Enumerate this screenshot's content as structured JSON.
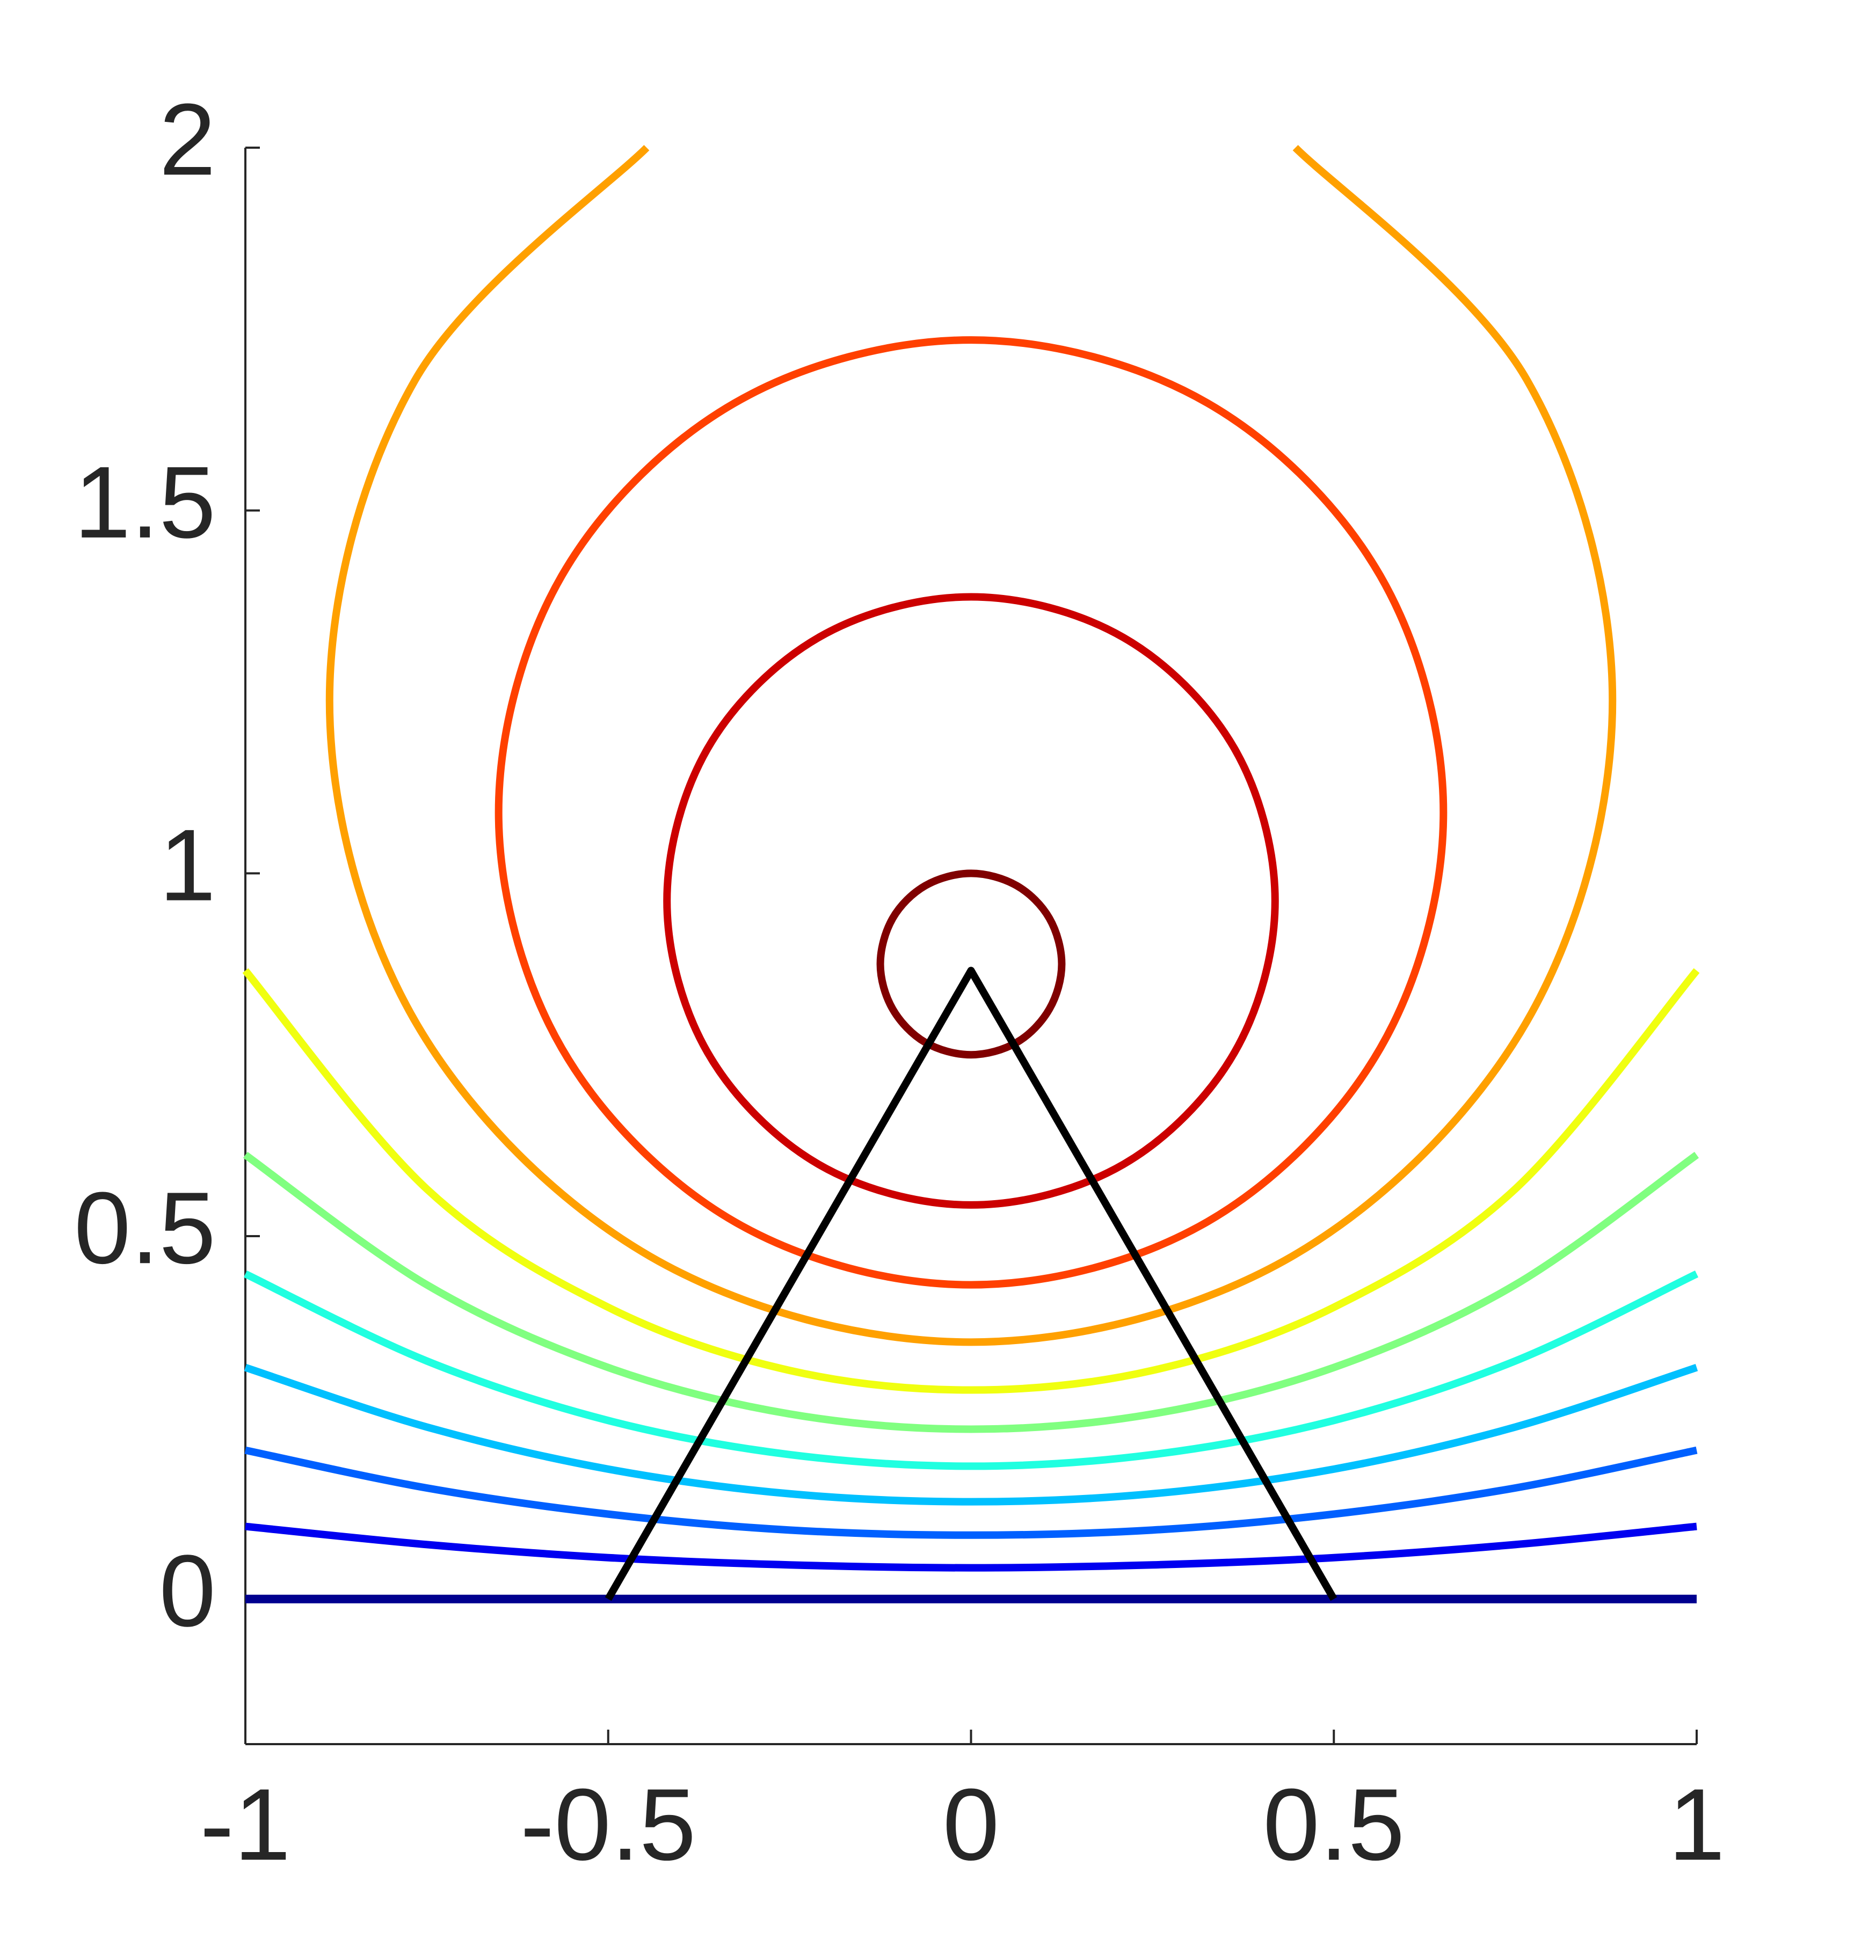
{
  "chart_data": {
    "type": "line",
    "xlim": [
      -1,
      1
    ],
    "ylim": [
      -0.2,
      2
    ],
    "xticks": [
      -1,
      -0.5,
      0,
      0.5,
      1
    ],
    "yticks": [
      0,
      0.5,
      1,
      1.5,
      2
    ],
    "series": [
      {
        "color": "#00008f",
        "x": [
          -1,
          1
        ],
        "values": [
          0,
          0
        ]
      },
      {
        "color": "#0000f0",
        "x": [
          -1,
          -0.75,
          -0.5,
          -0.25,
          0,
          0.25,
          0.5,
          0.75,
          1
        ],
        "values": [
          0.1,
          0.075,
          0.057,
          0.047,
          0.043,
          0.047,
          0.057,
          0.075,
          0.1
        ]
      },
      {
        "color": "#0060ff",
        "x": [
          -1,
          -0.75,
          -0.5,
          -0.25,
          0,
          0.25,
          0.5,
          0.75,
          1
        ],
        "values": [
          0.205,
          0.153,
          0.117,
          0.095,
          0.088,
          0.095,
          0.117,
          0.153,
          0.205
        ]
      },
      {
        "color": "#00c0ff",
        "x": [
          -1,
          -0.75,
          -0.5,
          -0.25,
          0,
          0.25,
          0.5,
          0.75,
          1
        ],
        "values": [
          0.319,
          0.237,
          0.179,
          0.145,
          0.134,
          0.145,
          0.179,
          0.237,
          0.319
        ]
      },
      {
        "color": "#20ffe0",
        "x": [
          -1,
          -0.75,
          -0.5,
          -0.25,
          0,
          0.25,
          0.5,
          0.75,
          1
        ],
        "values": [
          0.448,
          0.328,
          0.246,
          0.199,
          0.183,
          0.199,
          0.246,
          0.328,
          0.448
        ]
      },
      {
        "color": "#80ff80",
        "x": [
          -1,
          -0.75,
          -0.5,
          -0.25,
          0,
          0.25,
          0.5,
          0.75,
          1
        ],
        "values": [
          0.612,
          0.433,
          0.319,
          0.255,
          0.234,
          0.255,
          0.319,
          0.433,
          0.612
        ]
      },
      {
        "color": "#f0ff10",
        "x": [
          -1,
          -0.75,
          -0.5,
          -0.25,
          0,
          0.25,
          0.5,
          0.75,
          1
        ],
        "values": [
          0.866,
          0.565,
          0.402,
          0.315,
          0.288,
          0.315,
          0.402,
          0.565,
          0.866
        ]
      },
      {
        "color": "#ffa000",
        "x": [
          -0.447,
          -0.766,
          -0.884,
          -0.766,
          -0.442,
          0,
          0.442,
          0.766,
          0.884,
          0.766,
          0.447
        ],
        "values": [
          2,
          1.68,
          1.238,
          0.796,
          0.472,
          0.354,
          0.472,
          0.796,
          1.238,
          1.68,
          2
        ]
      },
      {
        "color": "#ff4000",
        "x": [
          0.651,
          0.564,
          0.326,
          0,
          -0.326,
          -0.564,
          -0.651,
          -0.564,
          -0.326,
          0,
          0.326,
          0.564,
          0.651
        ],
        "values": [
          1.084,
          1.41,
          1.648,
          1.735,
          1.648,
          1.41,
          1.084,
          0.759,
          0.52,
          0.433,
          0.52,
          0.759,
          1.084
        ]
      },
      {
        "color": "#cc0000",
        "x": [
          0.419,
          0.363,
          0.21,
          0,
          -0.21,
          -0.363,
          -0.419,
          -0.363,
          -0.21,
          0,
          0.21,
          0.363,
          0.419
        ],
        "values": [
          0.962,
          1.172,
          1.325,
          1.381,
          1.325,
          1.172,
          0.962,
          0.753,
          0.599,
          0.543,
          0.599,
          0.753,
          0.962
        ]
      },
      {
        "color": "#800000",
        "x": [
          0.125,
          0.108,
          0.063,
          0,
          -0.063,
          -0.108,
          -0.125,
          -0.108,
          -0.063,
          0,
          0.063,
          0.108,
          0.125
        ],
        "values": [
          0.875,
          0.938,
          0.983,
          1.0,
          0.983,
          0.938,
          0.875,
          0.813,
          0.767,
          0.75,
          0.767,
          0.813,
          0.875
        ]
      },
      {
        "color": "#000000",
        "x": [
          -0.5,
          0,
          0.5
        ],
        "values": [
          0,
          0.866,
          0
        ]
      }
    ]
  }
}
